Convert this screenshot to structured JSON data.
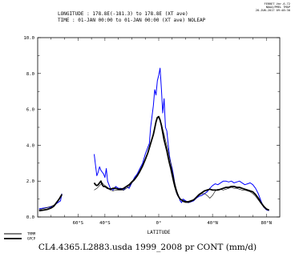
{
  "header": {
    "line1": "LONGITUDE : 178.8E(-181.3) to 178.8E (XT ave)",
    "line2": "TIME : 01-JAN 00:00 to 01-JAN 00:00 (XT ave) NOLEAP",
    "stamp": [
      "FERRET Ver.6.72",
      "NOAA/PMEL TMAP",
      "28-JUN-2017 09:48:30"
    ]
  },
  "footer": "CL4.4365.L2883.usda 1999_2008 pr CONT (mm/d)",
  "colors": {
    "TRMM": "#0000ff",
    "GPCP": "#000000",
    "model": "#000000"
  },
  "chart_data": {
    "type": "line",
    "title": "",
    "xlabel": "LATITUDE",
    "ylabel": "",
    "xlim": [
      -90,
      90
    ],
    "ylim": [
      0,
      10
    ],
    "x_ticks": [
      {
        "value": -60,
        "label": "60°S"
      },
      {
        "value": -40,
        "label": "40°S"
      },
      {
        "value": 0,
        "label": "0°"
      },
      {
        "value": 40,
        "label": "40°N"
      },
      {
        "value": 80,
        "label": "80°N"
      }
    ],
    "y_ticks": [
      {
        "value": 0,
        "label": "0.0"
      },
      {
        "value": 2,
        "label": "2.0"
      },
      {
        "value": 4,
        "label": "4.0"
      },
      {
        "value": 6,
        "label": "6.0"
      },
      {
        "value": 8,
        "label": "8.0"
      },
      {
        "value": 10,
        "label": "10.0"
      }
    ],
    "legend_placement": "bottom-left",
    "series": [
      {
        "name": "TRMM",
        "color": "#0000ff",
        "width": 1.0,
        "segments": [
          [
            [
              -89,
              0.45
            ],
            [
              -85,
              0.5
            ],
            [
              -81,
              0.55
            ],
            [
              -78,
              0.6
            ],
            [
              -76,
              0.75
            ],
            [
              -73,
              0.9
            ],
            [
              -72,
              1.3
            ]
          ],
          [
            [
              -48,
              3.5
            ],
            [
              -47,
              2.9
            ],
            [
              -46,
              2.3
            ],
            [
              -45,
              2.5
            ],
            [
              -44,
              2.8
            ],
            [
              -43,
              2.6
            ],
            [
              -42,
              2.5
            ],
            [
              -41,
              2.4
            ],
            [
              -40,
              2.2
            ],
            [
              -39,
              2.7
            ],
            [
              -38,
              2.0
            ],
            [
              -37,
              1.8
            ],
            [
              -36,
              1.6
            ],
            [
              -34,
              1.5
            ],
            [
              -32,
              1.7
            ],
            [
              -30,
              1.6
            ],
            [
              -28,
              1.6
            ],
            [
              -26,
              1.5
            ],
            [
              -24,
              1.7
            ],
            [
              -22,
              1.6
            ],
            [
              -20,
              1.9
            ],
            [
              -18,
              2.2
            ],
            [
              -16,
              2.4
            ],
            [
              -14,
              2.7
            ],
            [
              -12,
              3.0
            ],
            [
              -10,
              3.5
            ],
            [
              -8,
              3.9
            ],
            [
              -7,
              4.1
            ],
            [
              -6,
              5.0
            ],
            [
              -5,
              5.6
            ],
            [
              -4,
              6.2
            ],
            [
              -3,
              7.1
            ],
            [
              -2,
              6.8
            ],
            [
              -1,
              7.6
            ],
            [
              0,
              7.9
            ],
            [
              1,
              8.3
            ],
            [
              2,
              7.1
            ],
            [
              3,
              5.8
            ],
            [
              4,
              6.6
            ],
            [
              5,
              5.0
            ],
            [
              6,
              4.8
            ],
            [
              7,
              4.1
            ],
            [
              8,
              3.4
            ],
            [
              9,
              3.0
            ],
            [
              10,
              2.7
            ],
            [
              11,
              2.3
            ],
            [
              12,
              1.8
            ],
            [
              13,
              1.4
            ],
            [
              14,
              1.2
            ],
            [
              15,
              1.1
            ],
            [
              16,
              0.9
            ],
            [
              17,
              0.8
            ],
            [
              18,
              1.0
            ],
            [
              20,
              0.9
            ],
            [
              22,
              0.8
            ],
            [
              24,
              0.85
            ],
            [
              26,
              0.9
            ],
            [
              28,
              1.05
            ],
            [
              30,
              1.15
            ],
            [
              32,
              1.2
            ],
            [
              34,
              1.3
            ],
            [
              36,
              1.4
            ],
            [
              38,
              1.6
            ],
            [
              40,
              1.75
            ],
            [
              42,
              1.85
            ],
            [
              44,
              1.8
            ],
            [
              46,
              1.9
            ],
            [
              48,
              2.0
            ],
            [
              50,
              2.0
            ],
            [
              52,
              1.95
            ],
            [
              54,
              2.0
            ],
            [
              56,
              1.9
            ],
            [
              58,
              1.95
            ],
            [
              60,
              2.0
            ],
            [
              62,
              1.9
            ],
            [
              64,
              1.8
            ],
            [
              66,
              1.85
            ],
            [
              68,
              1.9
            ],
            [
              70,
              1.8
            ],
            [
              72,
              1.6
            ],
            [
              74,
              1.3
            ],
            [
              76,
              0.9
            ],
            [
              78,
              0.55
            ],
            [
              80,
              0.4
            ],
            [
              82,
              0.35
            ]
          ]
        ]
      },
      {
        "name": "GPCP",
        "color": "#000000",
        "width": 1.8,
        "segments": [
          [
            [
              -89,
              0.35
            ],
            [
              -86,
              0.38
            ],
            [
              -83,
              0.42
            ],
            [
              -80,
              0.5
            ],
            [
              -78,
              0.6
            ],
            [
              -76,
              0.8
            ],
            [
              -74,
              1.0
            ],
            [
              -72,
              1.25
            ]
          ],
          [
            [
              -48,
              1.9
            ],
            [
              -47,
              1.8
            ],
            [
              -46,
              1.75
            ],
            [
              -45,
              1.8
            ],
            [
              -44,
              1.9
            ],
            [
              -43,
              2.0
            ],
            [
              -42,
              1.8
            ],
            [
              -41,
              1.7
            ],
            [
              -40,
              1.7
            ],
            [
              -38,
              1.6
            ],
            [
              -36,
              1.55
            ],
            [
              -34,
              1.6
            ],
            [
              -32,
              1.6
            ],
            [
              -30,
              1.55
            ],
            [
              -28,
              1.55
            ],
            [
              -26,
              1.6
            ],
            [
              -24,
              1.7
            ],
            [
              -22,
              1.8
            ],
            [
              -20,
              1.95
            ],
            [
              -18,
              2.1
            ],
            [
              -16,
              2.3
            ],
            [
              -14,
              2.55
            ],
            [
              -12,
              2.85
            ],
            [
              -10,
              3.2
            ],
            [
              -8,
              3.6
            ],
            [
              -6,
              4.1
            ],
            [
              -4,
              4.6
            ],
            [
              -3,
              4.95
            ],
            [
              -2,
              5.3
            ],
            [
              -1,
              5.55
            ],
            [
              0,
              5.6
            ],
            [
              1,
              5.4
            ],
            [
              2,
              5.1
            ],
            [
              3,
              4.7
            ],
            [
              4,
              4.3
            ],
            [
              5,
              4.0
            ],
            [
              6,
              3.7
            ],
            [
              7,
              3.35
            ],
            [
              8,
              3.0
            ],
            [
              9,
              2.7
            ],
            [
              10,
              2.35
            ],
            [
              11,
              2.0
            ],
            [
              12,
              1.7
            ],
            [
              13,
              1.45
            ],
            [
              14,
              1.25
            ],
            [
              15,
              1.1
            ],
            [
              16,
              1.0
            ],
            [
              17,
              0.95
            ],
            [
              18,
              0.9
            ],
            [
              20,
              0.85
            ],
            [
              22,
              0.85
            ],
            [
              24,
              0.9
            ],
            [
              26,
              0.95
            ],
            [
              28,
              1.1
            ],
            [
              30,
              1.25
            ],
            [
              32,
              1.35
            ],
            [
              34,
              1.45
            ],
            [
              36,
              1.5
            ],
            [
              38,
              1.55
            ],
            [
              40,
              1.5
            ],
            [
              42,
              1.5
            ],
            [
              44,
              1.5
            ],
            [
              46,
              1.55
            ],
            [
              48,
              1.6
            ],
            [
              50,
              1.65
            ],
            [
              52,
              1.65
            ],
            [
              54,
              1.7
            ],
            [
              56,
              1.7
            ],
            [
              58,
              1.65
            ],
            [
              60,
              1.65
            ],
            [
              62,
              1.6
            ],
            [
              64,
              1.55
            ],
            [
              66,
              1.5
            ],
            [
              68,
              1.45
            ],
            [
              70,
              1.4
            ],
            [
              72,
              1.25
            ],
            [
              74,
              1.05
            ],
            [
              76,
              0.8
            ],
            [
              78,
              0.6
            ],
            [
              80,
              0.45
            ],
            [
              82,
              0.38
            ]
          ]
        ]
      },
      {
        "color": "#000000",
        "width": 0.6,
        "segments": [
          [
            [
              -89,
              0.4
            ],
            [
              -84,
              0.5
            ],
            [
              -80,
              0.6
            ],
            [
              -77,
              0.7
            ],
            [
              -74,
              0.95
            ],
            [
              -72,
              1.3
            ]
          ],
          [
            [
              -48,
              1.5
            ],
            [
              -46,
              1.6
            ],
            [
              -44,
              1.75
            ],
            [
              -42,
              1.9
            ],
            [
              -40,
              1.75
            ],
            [
              -38,
              1.65
            ],
            [
              -36,
              1.5
            ],
            [
              -34,
              1.45
            ],
            [
              -32,
              1.5
            ],
            [
              -30,
              1.5
            ],
            [
              -28,
              1.5
            ],
            [
              -26,
              1.5
            ],
            [
              -24,
              1.6
            ],
            [
              -22,
              1.7
            ],
            [
              -20,
              1.9
            ],
            [
              -18,
              2.05
            ],
            [
              -16,
              2.25
            ],
            [
              -14,
              2.5
            ],
            [
              -12,
              2.8
            ],
            [
              -10,
              3.2
            ],
            [
              -8,
              3.6
            ],
            [
              -6,
              4.1
            ],
            [
              -4,
              4.6
            ],
            [
              -3,
              5.0
            ],
            [
              -2,
              5.3
            ],
            [
              -1,
              5.5
            ],
            [
              0,
              5.55
            ],
            [
              1,
              5.4
            ],
            [
              2,
              5.2
            ],
            [
              3,
              4.9
            ],
            [
              4,
              4.6
            ],
            [
              5,
              4.3
            ],
            [
              6,
              4.0
            ],
            [
              7,
              3.7
            ],
            [
              8,
              3.3
            ],
            [
              9,
              3.0
            ],
            [
              10,
              2.6
            ],
            [
              11,
              2.25
            ],
            [
              12,
              1.9
            ],
            [
              13,
              1.6
            ],
            [
              14,
              1.35
            ],
            [
              15,
              1.15
            ],
            [
              16,
              1.0
            ],
            [
              18,
              0.85
            ],
            [
              20,
              0.8
            ],
            [
              22,
              0.8
            ],
            [
              24,
              0.85
            ],
            [
              26,
              0.95
            ],
            [
              28,
              1.1
            ],
            [
              30,
              1.2
            ],
            [
              32,
              1.3
            ],
            [
              34,
              1.3
            ],
            [
              36,
              1.2
            ],
            [
              38,
              1.05
            ],
            [
              40,
              1.2
            ],
            [
              42,
              1.45
            ],
            [
              44,
              1.55
            ],
            [
              46,
              1.55
            ],
            [
              48,
              1.5
            ],
            [
              50,
              1.55
            ],
            [
              52,
              1.6
            ],
            [
              54,
              1.65
            ],
            [
              56,
              1.6
            ],
            [
              58,
              1.6
            ],
            [
              60,
              1.55
            ],
            [
              62,
              1.5
            ],
            [
              64,
              1.5
            ],
            [
              66,
              1.45
            ],
            [
              68,
              1.4
            ],
            [
              70,
              1.3
            ],
            [
              72,
              1.15
            ],
            [
              74,
              0.95
            ],
            [
              76,
              0.75
            ],
            [
              78,
              0.55
            ],
            [
              80,
              0.42
            ],
            [
              82,
              0.38
            ]
          ]
        ]
      }
    ]
  }
}
